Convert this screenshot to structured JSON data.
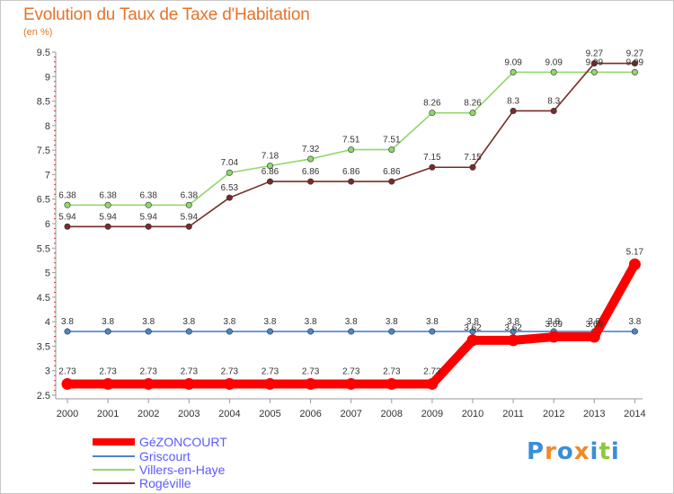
{
  "chart_data": {
    "type": "line",
    "title": "Evolution du Taux de Taxe d'Habitation",
    "unit_label": "(en %)",
    "categories": [
      "2000",
      "2001",
      "2002",
      "2003",
      "2004",
      "2005",
      "2006",
      "2007",
      "2008",
      "2009",
      "2010",
      "2011",
      "2012",
      "2013",
      "2014"
    ],
    "ylim": [
      2.5,
      9.5
    ],
    "yticks": [
      "2.5",
      "3",
      "3.5",
      "4",
      "4.5",
      "5",
      "5.5",
      "6",
      "6.5",
      "7",
      "7.5",
      "8",
      "8.5",
      "9",
      "9.5"
    ],
    "grid": false,
    "legend_position": "bottom-left",
    "series": [
      {
        "name": "GéZONCOURT",
        "color": "#ff0000",
        "values": [
          2.73,
          2.73,
          2.73,
          2.73,
          2.73,
          2.73,
          2.73,
          2.73,
          2.73,
          2.73,
          3.62,
          3.62,
          3.69,
          3.69,
          5.17
        ],
        "labels": [
          "2.73",
          "2.73",
          "2.73",
          "2.73",
          "2.73",
          "2.73",
          "2.73",
          "2.73",
          "2.73",
          "2.73",
          "3.62",
          "3.62",
          "3.69",
          "3.69",
          "5.17"
        ]
      },
      {
        "name": "Griscourt",
        "color": "#4a86c8",
        "values": [
          3.8,
          3.8,
          3.8,
          3.8,
          3.8,
          3.8,
          3.8,
          3.8,
          3.8,
          3.8,
          3.8,
          3.8,
          3.8,
          3.8,
          3.8
        ],
        "labels": [
          "3.8",
          "3.8",
          "3.8",
          "3.8",
          "3.8",
          "3.8",
          "3.8",
          "3.8",
          "3.8",
          "3.8",
          "3.8",
          "3.8",
          "3.8",
          "3.8",
          "3.8"
        ]
      },
      {
        "name": "Villers-en-Haye",
        "color": "#8fd86a",
        "values": [
          6.38,
          6.38,
          6.38,
          6.38,
          7.04,
          7.18,
          7.32,
          7.51,
          7.51,
          8.26,
          8.26,
          9.09,
          9.09,
          9.09,
          9.09
        ],
        "labels": [
          "6.38",
          "6.38",
          "6.38",
          "6.38",
          "7.04",
          "7.18",
          "7.32",
          "7.51",
          "7.51",
          "8.26",
          "8.26",
          "9.09",
          "9.09",
          "9.09",
          "9.09"
        ]
      },
      {
        "name": "Rogéville",
        "color": "#7a2a2a",
        "values": [
          5.94,
          5.94,
          5.94,
          5.94,
          6.53,
          6.86,
          6.86,
          6.86,
          6.86,
          7.15,
          7.15,
          8.3,
          8.3,
          9.27,
          9.27
        ],
        "labels": [
          "5.94",
          "5.94",
          "5.94",
          "5.94",
          "6.53",
          "6.86",
          "6.86",
          "6.86",
          "6.86",
          "7.15",
          "7.15",
          "8.3",
          "8.3",
          "9.27",
          "9.27"
        ]
      }
    ]
  },
  "logo": {
    "text": "Proxiti",
    "colors": [
      "#3a8ed6",
      "#f08a24",
      "#3a8ed6",
      "#f08a24",
      "#3a8ed6",
      "#8cc83c",
      "#3a8ed6"
    ]
  }
}
